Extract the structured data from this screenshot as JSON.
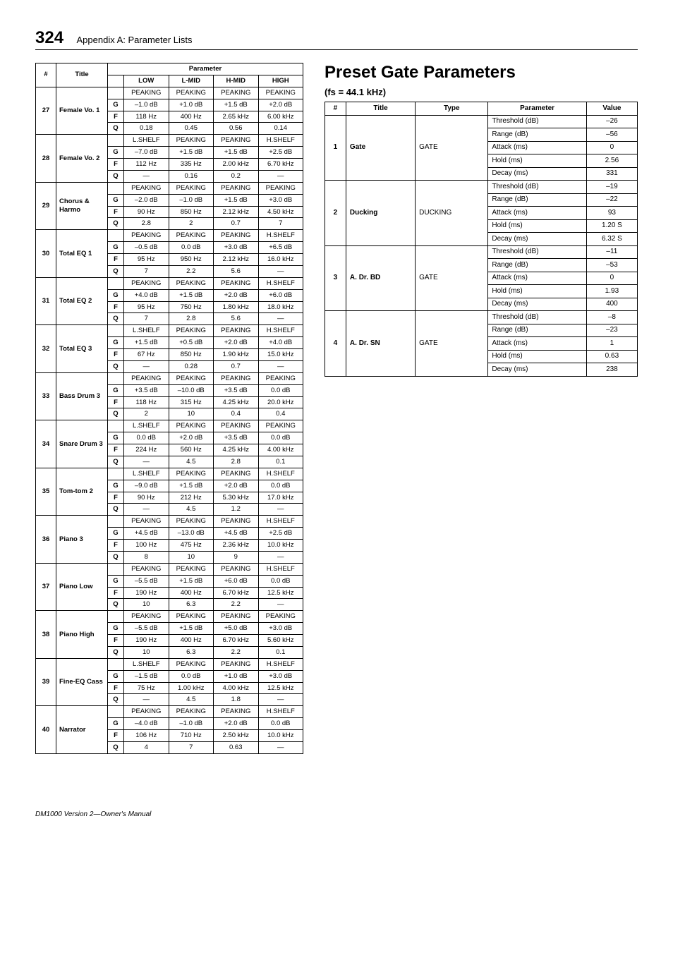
{
  "page": {
    "number": "324",
    "appendix": "Appendix A: Parameter Lists",
    "footer": "DM1000 Version 2—Owner's Manual"
  },
  "eq_table": {
    "head": {
      "num": "#",
      "title": "Title",
      "param": "Parameter",
      "low": "LOW",
      "lmid": "L-MID",
      "hmid": "H-MID",
      "high": "HIGH"
    },
    "rows": [
      {
        "num": "27",
        "title": "Female Vo. 1",
        "type": [
          "PEAKING",
          "PEAKING",
          "PEAKING",
          "PEAKING"
        ],
        "g": [
          "–1.0 dB",
          "+1.0 dB",
          "+1.5 dB",
          "+2.0 dB"
        ],
        "f": [
          "118 Hz",
          "400 Hz",
          "2.65 kHz",
          "6.00 kHz"
        ],
        "q": [
          "0.18",
          "0.45",
          "0.56",
          "0.14"
        ]
      },
      {
        "num": "28",
        "title": "Female Vo. 2",
        "type": [
          "L.SHELF",
          "PEAKING",
          "PEAKING",
          "H.SHELF"
        ],
        "g": [
          "–7.0 dB",
          "+1.5 dB",
          "+1.5 dB",
          "+2.5 dB"
        ],
        "f": [
          "112 Hz",
          "335 Hz",
          "2.00 kHz",
          "6.70 kHz"
        ],
        "q": [
          "—",
          "0.16",
          "0.2",
          "—"
        ]
      },
      {
        "num": "29",
        "title": "Chorus & Harmo",
        "type": [
          "PEAKING",
          "PEAKING",
          "PEAKING",
          "PEAKING"
        ],
        "g": [
          "–2.0 dB",
          "–1.0 dB",
          "+1.5 dB",
          "+3.0 dB"
        ],
        "f": [
          "90 Hz",
          "850 Hz",
          "2.12 kHz",
          "4.50 kHz"
        ],
        "q": [
          "2.8",
          "2",
          "0.7",
          "7"
        ]
      },
      {
        "num": "30",
        "title": "Total EQ 1",
        "type": [
          "PEAKING",
          "PEAKING",
          "PEAKING",
          "H.SHELF"
        ],
        "g": [
          "–0.5 dB",
          "0.0 dB",
          "+3.0 dB",
          "+6.5 dB"
        ],
        "f": [
          "95 Hz",
          "950 Hz",
          "2.12 kHz",
          "16.0 kHz"
        ],
        "q": [
          "7",
          "2.2",
          "5.6",
          "—"
        ]
      },
      {
        "num": "31",
        "title": "Total EQ 2",
        "type": [
          "PEAKING",
          "PEAKING",
          "PEAKING",
          "H.SHELF"
        ],
        "g": [
          "+4.0 dB",
          "+1.5 dB",
          "+2.0 dB",
          "+6.0 dB"
        ],
        "f": [
          "95 Hz",
          "750 Hz",
          "1.80 kHz",
          "18.0 kHz"
        ],
        "q": [
          "7",
          "2.8",
          "5.6",
          "—"
        ]
      },
      {
        "num": "32",
        "title": "Total EQ 3",
        "type": [
          "L.SHELF",
          "PEAKING",
          "PEAKING",
          "H.SHELF"
        ],
        "g": [
          "+1.5 dB",
          "+0.5 dB",
          "+2.0 dB",
          "+4.0 dB"
        ],
        "f": [
          "67 Hz",
          "850 Hz",
          "1.90 kHz",
          "15.0 kHz"
        ],
        "q": [
          "—",
          "0.28",
          "0.7",
          "—"
        ]
      },
      {
        "num": "33",
        "title": "Bass Drum 3",
        "type": [
          "PEAKING",
          "PEAKING",
          "PEAKING",
          "PEAKING"
        ],
        "g": [
          "+3.5 dB",
          "–10.0 dB",
          "+3.5 dB",
          "0.0 dB"
        ],
        "f": [
          "118 Hz",
          "315 Hz",
          "4.25 kHz",
          "20.0 kHz"
        ],
        "q": [
          "2",
          "10",
          "0.4",
          "0.4"
        ]
      },
      {
        "num": "34",
        "title": "Snare Drum 3",
        "type": [
          "L.SHELF",
          "PEAKING",
          "PEAKING",
          "PEAKING"
        ],
        "g": [
          "0.0 dB",
          "+2.0 dB",
          "+3.5 dB",
          "0.0 dB"
        ],
        "f": [
          "224 Hz",
          "560 Hz",
          "4.25 kHz",
          "4.00 kHz"
        ],
        "q": [
          "—",
          "4.5",
          "2.8",
          "0.1"
        ]
      },
      {
        "num": "35",
        "title": "Tom-tom 2",
        "type": [
          "L.SHELF",
          "PEAKING",
          "PEAKING",
          "H.SHELF"
        ],
        "g": [
          "–9.0 dB",
          "+1.5 dB",
          "+2.0 dB",
          "0.0 dB"
        ],
        "f": [
          "90 Hz",
          "212 Hz",
          "5.30 kHz",
          "17.0 kHz"
        ],
        "q": [
          "—",
          "4.5",
          "1.2",
          "—"
        ]
      },
      {
        "num": "36",
        "title": "Piano 3",
        "type": [
          "PEAKING",
          "PEAKING",
          "PEAKING",
          "H.SHELF"
        ],
        "g": [
          "+4.5 dB",
          "–13.0 dB",
          "+4.5 dB",
          "+2.5 dB"
        ],
        "f": [
          "100 Hz",
          "475 Hz",
          "2.36 kHz",
          "10.0 kHz"
        ],
        "q": [
          "8",
          "10",
          "9",
          "—"
        ]
      },
      {
        "num": "37",
        "title": "Piano Low",
        "type": [
          "PEAKING",
          "PEAKING",
          "PEAKING",
          "H.SHELF"
        ],
        "g": [
          "–5.5 dB",
          "+1.5 dB",
          "+6.0 dB",
          "0.0 dB"
        ],
        "f": [
          "190 Hz",
          "400 Hz",
          "6.70 kHz",
          "12.5 kHz"
        ],
        "q": [
          "10",
          "6.3",
          "2.2",
          "—"
        ]
      },
      {
        "num": "38",
        "title": "Piano High",
        "type": [
          "PEAKING",
          "PEAKING",
          "PEAKING",
          "PEAKING"
        ],
        "g": [
          "–5.5 dB",
          "+1.5 dB",
          "+5.0 dB",
          "+3.0 dB"
        ],
        "f": [
          "190 Hz",
          "400 Hz",
          "6.70 kHz",
          "5.60 kHz"
        ],
        "q": [
          "10",
          "6.3",
          "2.2",
          "0.1"
        ]
      },
      {
        "num": "39",
        "title": "Fine-EQ Cass",
        "type": [
          "L.SHELF",
          "PEAKING",
          "PEAKING",
          "H.SHELF"
        ],
        "g": [
          "–1.5 dB",
          "0.0 dB",
          "+1.0 dB",
          "+3.0 dB"
        ],
        "f": [
          "75 Hz",
          "1.00 kHz",
          "4.00 kHz",
          "12.5 kHz"
        ],
        "q": [
          "—",
          "4.5",
          "1.8",
          "—"
        ]
      },
      {
        "num": "40",
        "title": "Narrator",
        "type": [
          "PEAKING",
          "PEAKING",
          "PEAKING",
          "H.SHELF"
        ],
        "g": [
          "–4.0 dB",
          "–1.0 dB",
          "+2.0 dB",
          "0.0 dB"
        ],
        "f": [
          "106 Hz",
          "710 Hz",
          "2.50 kHz",
          "10.0 kHz"
        ],
        "q": [
          "4",
          "7",
          "0.63",
          "—"
        ]
      }
    ]
  },
  "gate_section": {
    "heading": "Preset Gate Parameters",
    "subtitle": "(fs = 44.1 kHz)",
    "head": {
      "num": "#",
      "title": "Title",
      "type": "Type",
      "param": "Parameter",
      "value": "Value"
    },
    "rows": [
      {
        "num": "1",
        "title": "Gate",
        "type": "GATE",
        "params": [
          [
            "Threshold (dB)",
            "–26"
          ],
          [
            "Range (dB)",
            "–56"
          ],
          [
            "Attack (ms)",
            "0"
          ],
          [
            "Hold (ms)",
            "2.56"
          ],
          [
            "Decay (ms)",
            "331"
          ]
        ]
      },
      {
        "num": "2",
        "title": "Ducking",
        "type": "DUCKING",
        "params": [
          [
            "Threshold (dB)",
            "–19"
          ],
          [
            "Range (dB)",
            "–22"
          ],
          [
            "Attack (ms)",
            "93"
          ],
          [
            "Hold (ms)",
            "1.20 S"
          ],
          [
            "Decay (ms)",
            "6.32 S"
          ]
        ]
      },
      {
        "num": "3",
        "title": "A. Dr. BD",
        "type": "GATE",
        "params": [
          [
            "Threshold (dB)",
            "–11"
          ],
          [
            "Range (dB)",
            "–53"
          ],
          [
            "Attack (ms)",
            "0"
          ],
          [
            "Hold (ms)",
            "1.93"
          ],
          [
            "Decay (ms)",
            "400"
          ]
        ]
      },
      {
        "num": "4",
        "title": "A. Dr. SN",
        "type": "GATE",
        "params": [
          [
            "Threshold (dB)",
            "–8"
          ],
          [
            "Range (dB)",
            "–23"
          ],
          [
            "Attack (ms)",
            "1"
          ],
          [
            "Hold (ms)",
            "0.63"
          ],
          [
            "Decay (ms)",
            "238"
          ]
        ]
      }
    ]
  }
}
